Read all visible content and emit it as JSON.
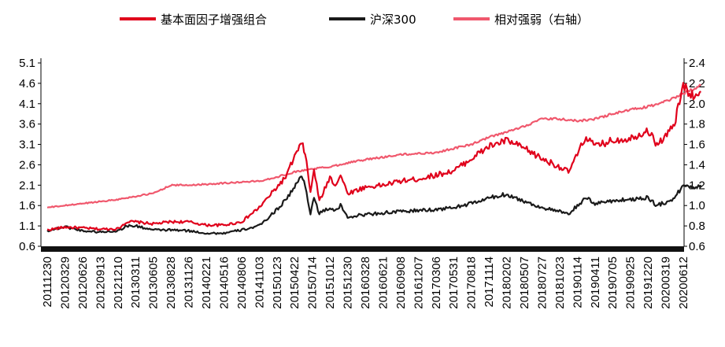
{
  "chart_data": {
    "type": "line",
    "title": "",
    "xlabel": "",
    "ylabel": "",
    "legend_position": "top",
    "grid": false,
    "left_axis": {
      "ylim": [
        0.6,
        5.1
      ],
      "ticks": [
        "0.6",
        "1.1",
        "1.6",
        "2.1",
        "2.6",
        "3.1",
        "3.6",
        "4.1",
        "4.6",
        "5.1"
      ]
    },
    "right_axis": {
      "ylim": [
        0.6,
        2.4
      ],
      "ticks": [
        "0.6",
        "0.8",
        "1.0",
        "1.2",
        "1.4",
        "1.6",
        "1.8",
        "2.0",
        "2.2",
        "2.4"
      ]
    },
    "x_tick_labels": [
      "20111230",
      "20120329",
      "20120626",
      "20120913",
      "20121210",
      "20130311",
      "20130605",
      "20130828",
      "20131126",
      "20140221",
      "20140516",
      "20140806",
      "20141103",
      "20150123",
      "20150422",
      "20150714",
      "20151012",
      "20151230",
      "20160328",
      "20160621",
      "20160908",
      "20161207",
      "20170306",
      "20170531",
      "20170818",
      "20171114",
      "20180202",
      "20180507",
      "20180727",
      "20181023",
      "20190114",
      "20190411",
      "20190705",
      "20190925",
      "20191220",
      "20200319",
      "20200612"
    ],
    "series": [
      {
        "name": "基本面因子增强组合",
        "axis": "left",
        "color": "#e0001b",
        "points": [
          [
            0,
            1.0
          ],
          [
            1,
            1.07
          ],
          [
            2,
            1.05
          ],
          [
            3,
            1.02
          ],
          [
            4,
            1.03
          ],
          [
            4.5,
            1.2
          ],
          [
            5,
            1.2
          ],
          [
            6,
            1.15
          ],
          [
            7,
            1.2
          ],
          [
            8,
            1.2
          ],
          [
            9,
            1.12
          ],
          [
            10,
            1.12
          ],
          [
            11,
            1.2
          ],
          [
            12,
            1.55
          ],
          [
            13,
            2.05
          ],
          [
            13.5,
            2.3
          ],
          [
            14,
            2.8
          ],
          [
            14.4,
            3.12
          ],
          [
            14.6,
            2.9
          ],
          [
            14.9,
            1.9
          ],
          [
            15.1,
            2.5
          ],
          [
            15.4,
            1.7
          ],
          [
            16,
            2.3
          ],
          [
            16.3,
            2.1
          ],
          [
            16.6,
            2.35
          ],
          [
            17,
            1.9
          ],
          [
            18,
            2.05
          ],
          [
            19,
            2.1
          ],
          [
            20,
            2.2
          ],
          [
            21,
            2.25
          ],
          [
            22,
            2.35
          ],
          [
            23,
            2.45
          ],
          [
            24,
            2.75
          ],
          [
            25,
            3.05
          ],
          [
            26,
            3.2
          ],
          [
            27,
            3.0
          ],
          [
            28,
            2.75
          ],
          [
            29,
            2.55
          ],
          [
            29.5,
            2.42
          ],
          [
            30,
            2.85
          ],
          [
            30.5,
            3.3
          ],
          [
            31,
            3.05
          ],
          [
            32,
            3.2
          ],
          [
            33,
            3.25
          ],
          [
            34,
            3.45
          ],
          [
            34.5,
            3.1
          ],
          [
            35,
            3.3
          ],
          [
            35.5,
            3.6
          ],
          [
            36,
            4.55
          ],
          [
            36.5,
            4.3
          ],
          [
            37,
            4.4
          ]
        ]
      },
      {
        "name": "沪深300",
        "axis": "left",
        "color": "#1a1a1a",
        "points": [
          [
            0,
            0.98
          ],
          [
            1,
            1.08
          ],
          [
            2,
            0.98
          ],
          [
            3,
            0.95
          ],
          [
            4,
            0.98
          ],
          [
            4.5,
            1.1
          ],
          [
            5,
            1.1
          ],
          [
            6,
            1.0
          ],
          [
            7,
            1.0
          ],
          [
            8,
            0.98
          ],
          [
            9,
            0.92
          ],
          [
            10,
            0.92
          ],
          [
            11,
            1.0
          ],
          [
            12,
            1.1
          ],
          [
            13,
            1.5
          ],
          [
            13.5,
            1.75
          ],
          [
            14,
            2.05
          ],
          [
            14.4,
            2.33
          ],
          [
            14.6,
            2.1
          ],
          [
            14.9,
            1.4
          ],
          [
            15.1,
            1.8
          ],
          [
            15.4,
            1.4
          ],
          [
            16,
            1.55
          ],
          [
            16.3,
            1.45
          ],
          [
            16.6,
            1.6
          ],
          [
            17,
            1.32
          ],
          [
            18,
            1.38
          ],
          [
            19,
            1.42
          ],
          [
            20,
            1.45
          ],
          [
            21,
            1.48
          ],
          [
            22,
            1.5
          ],
          [
            23,
            1.55
          ],
          [
            24,
            1.65
          ],
          [
            25,
            1.78
          ],
          [
            26,
            1.88
          ],
          [
            27,
            1.7
          ],
          [
            28,
            1.55
          ],
          [
            29,
            1.45
          ],
          [
            29.5,
            1.38
          ],
          [
            30,
            1.6
          ],
          [
            30.5,
            1.78
          ],
          [
            31,
            1.65
          ],
          [
            32,
            1.72
          ],
          [
            33,
            1.75
          ],
          [
            34,
            1.8
          ],
          [
            34.5,
            1.6
          ],
          [
            35,
            1.68
          ],
          [
            35.5,
            1.78
          ],
          [
            36,
            2.1
          ],
          [
            36.5,
            2.05
          ],
          [
            37,
            2.1
          ]
        ]
      },
      {
        "name": "相对强弱（右轴）",
        "axis": "right",
        "color": "#f0586d",
        "points": [
          [
            0,
            0.98
          ],
          [
            2,
            1.02
          ],
          [
            4,
            1.06
          ],
          [
            6,
            1.12
          ],
          [
            7,
            1.2
          ],
          [
            8,
            1.2
          ],
          [
            10,
            1.22
          ],
          [
            12,
            1.24
          ],
          [
            13,
            1.28
          ],
          [
            14,
            1.33
          ],
          [
            15,
            1.36
          ],
          [
            16,
            1.38
          ],
          [
            17,
            1.42
          ],
          [
            18,
            1.45
          ],
          [
            20,
            1.5
          ],
          [
            22,
            1.52
          ],
          [
            24,
            1.6
          ],
          [
            25,
            1.67
          ],
          [
            26,
            1.72
          ],
          [
            27,
            1.78
          ],
          [
            28,
            1.85
          ],
          [
            29,
            1.85
          ],
          [
            30,
            1.83
          ],
          [
            31,
            1.85
          ],
          [
            32,
            1.9
          ],
          [
            33,
            1.94
          ],
          [
            34,
            1.97
          ],
          [
            35,
            2.02
          ],
          [
            36,
            2.1
          ],
          [
            37,
            2.18
          ]
        ]
      }
    ]
  }
}
